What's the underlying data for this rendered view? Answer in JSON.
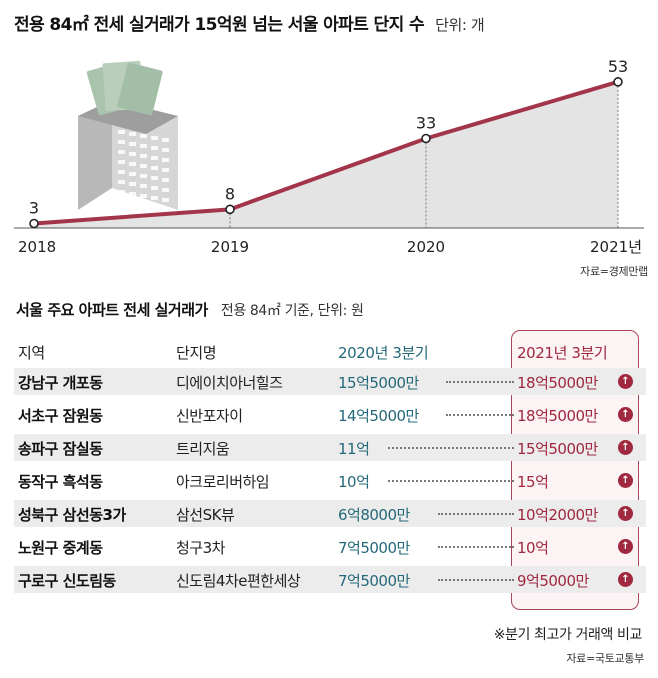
{
  "title": "전용 84㎡ 전세 실거래가 15억원 넘는 서울 아파트 단지 수",
  "unit": "단위: 개",
  "chart_data": {
    "type": "area",
    "x": [
      "2018",
      "2019",
      "2020",
      "2021년"
    ],
    "values": [
      3,
      8,
      33,
      53
    ],
    "ylim": [
      0,
      60
    ],
    "colors": {
      "line": "#a3354b",
      "area": "#e4e4e4"
    }
  },
  "source_top": "자료=경제만랩",
  "table_title": "서울 주요 아파트 전세 실거래가",
  "table_note": "전용 84㎡ 기준, 단위: 원",
  "table": {
    "headers": [
      "지역",
      "단지명",
      "2020년 3분기",
      "2021년 3분기"
    ],
    "rows": [
      {
        "area": "강남구 개포동",
        "name": "디에이치아너힐즈",
        "prev": "15억5000만",
        "cur": "18억5000만"
      },
      {
        "area": "서초구 잠원동",
        "name": "신반포자이",
        "prev": "14억5000만",
        "cur": "18억5000만"
      },
      {
        "area": "송파구 잠실동",
        "name": "트리지움",
        "prev": "11억",
        "cur": "15억5000만"
      },
      {
        "area": "동작구 흑석동",
        "name": "아크로리버하임",
        "prev": "10억",
        "cur": "15억"
      },
      {
        "area": "성북구 삼선동3가",
        "name": "삼선SK뷰",
        "prev": "6억8000만",
        "cur": "10억2000만"
      },
      {
        "area": "노원구 중계동",
        "name": "청구3차",
        "prev": "7억5000만",
        "cur": "10억"
      },
      {
        "area": "구로구 신도림동",
        "name": "신도림4차e편한세상",
        "prev": "7억5000만",
        "cur": "9억5000만"
      }
    ]
  },
  "footnote": "※분기 최고가 거래액 비교",
  "source_bottom": "자료=국토교통부",
  "colors": {
    "accent": "#a0283f",
    "prev_col": "#24697a",
    "row_shade": "#ececec"
  },
  "icons": {
    "increase": "arrow-up-icon",
    "building": "apartment-building-icon"
  }
}
